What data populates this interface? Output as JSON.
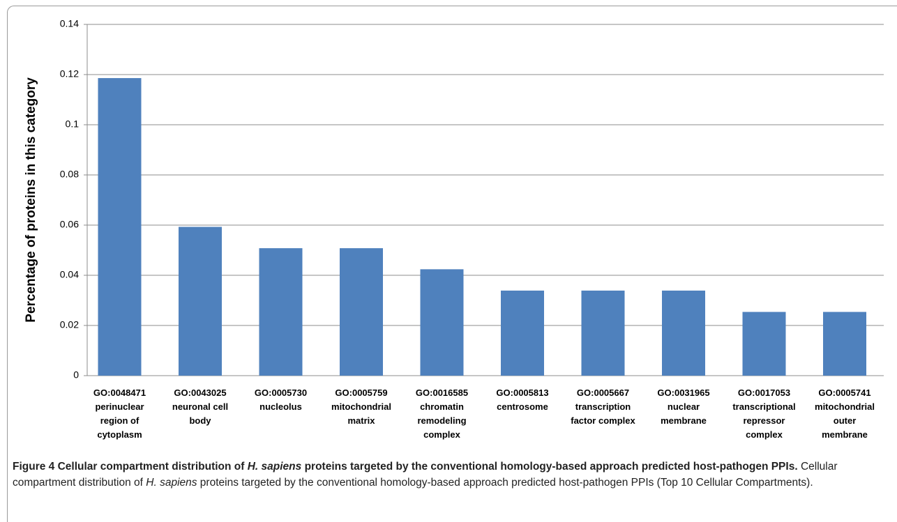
{
  "chart_data": {
    "type": "bar",
    "ylabel": "Percentage of proteins in this category",
    "categories": [
      [
        "GO:0048471",
        "perinuclear",
        "region of",
        "cytoplasm"
      ],
      [
        "GO:0043025",
        "neuronal cell",
        "body"
      ],
      [
        "GO:0005730",
        "nucleolus"
      ],
      [
        "GO:0005759",
        "mitochondrial",
        "matrix"
      ],
      [
        "GO:0016585",
        "chromatin",
        "remodeling",
        "complex"
      ],
      [
        "GO:0005813",
        "centrosome"
      ],
      [
        "GO:0005667",
        "transcription",
        "factor complex"
      ],
      [
        "GO:0031965",
        "nuclear",
        "membrane"
      ],
      [
        "GO:0017053",
        "transcriptional",
        "repressor",
        "complex"
      ],
      [
        "GO:0005741",
        "mitochondrial",
        "outer",
        "membrane"
      ]
    ],
    "values": [
      0.1186,
      0.0593,
      0.0508,
      0.0508,
      0.0424,
      0.0339,
      0.0339,
      0.0339,
      0.0254,
      0.0254
    ],
    "color": "#4f81bd",
    "ylim": [
      0,
      0.14
    ],
    "yticks": [
      0,
      0.02,
      0.04,
      0.06,
      0.08,
      0.1,
      0.12,
      0.14
    ],
    "grid": true
  },
  "caption": {
    "bold": [
      "Figure 4 Cellular compartment distribution of ",
      "H. sapiens",
      " proteins targeted by the conventional homology-based approach predicted host-pathogen PPIs."
    ],
    "text": [
      " Cellular compartment distribution of ",
      "H. sapiens",
      " proteins targeted by the conventional homology-based approach predicted host-pathogen PPIs (Top 10 Cellular Compartments)."
    ]
  }
}
